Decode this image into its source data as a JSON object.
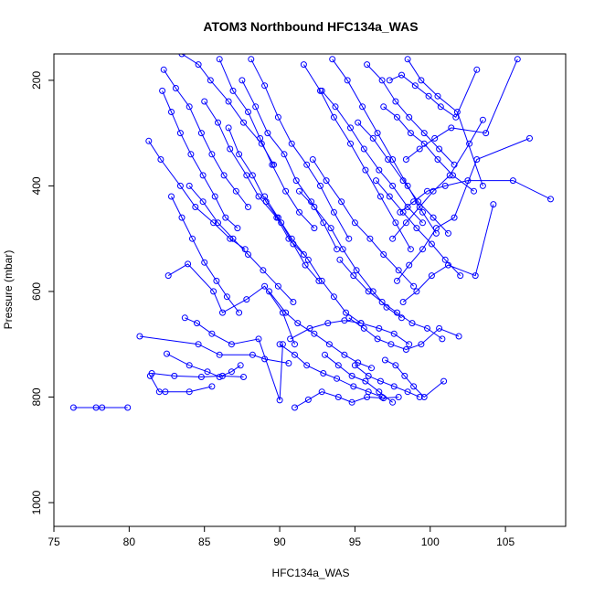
{
  "chart_data": {
    "type": "scatter",
    "title": "ATOM3 Northbound HFC134a_WAS",
    "xlabel": "HFC134a_WAS",
    "ylabel": "Pressure (mbar)",
    "xlim": [
      75,
      109
    ],
    "ylim": [
      1045,
      150
    ],
    "y_reversed": true,
    "grid": false,
    "legend": "none",
    "x_ticks": [
      "75",
      "80",
      "85",
      "90",
      "95",
      "100",
      "105"
    ],
    "y_ticks": [
      "200",
      "400",
      "600",
      "800",
      "1000"
    ],
    "colors": {
      "series": "#0000ff",
      "axis": "#000000"
    },
    "marker": "open-circle",
    "connect_points": true,
    "series": [
      {
        "x": [
          76.3,
          77.8,
          78.2,
          79.9
        ],
        "y": [
          820,
          820,
          820,
          820
        ]
      },
      {
        "x": [
          81.4,
          82.0,
          82.4,
          84.0,
          85.5
        ],
        "y": [
          760,
          790,
          790,
          790,
          780
        ]
      },
      {
        "x": [
          81.5,
          83.0,
          84.8,
          86.2,
          87.6
        ],
        "y": [
          755,
          760,
          762,
          760,
          762
        ]
      },
      {
        "x": [
          82.5,
          84.0,
          85.2,
          86.0,
          86.8,
          87.4
        ],
        "y": [
          718,
          740,
          752,
          762,
          752,
          740
        ]
      },
      {
        "x": [
          80.7,
          84.6,
          86.0,
          88.2,
          89.0,
          90.6
        ],
        "y": [
          685,
          700,
          720,
          720,
          728,
          736
        ]
      },
      {
        "x": [
          83.7,
          84.5,
          85.5,
          86.8,
          88.6,
          90.0,
          90.2
        ],
        "y": [
          650,
          660,
          680,
          700,
          690,
          806,
          700
        ]
      },
      {
        "x": [
          82.6,
          83.9,
          85.6,
          86.2,
          87.8,
          89.0,
          90.2,
          91.0
        ],
        "y": [
          570,
          548,
          600,
          640,
          615,
          590,
          640,
          700
        ]
      },
      {
        "x": [
          81.3,
          82.1,
          83.4,
          84.4,
          85.6,
          86.7,
          87.7
        ],
        "y": [
          315,
          350,
          400,
          440,
          470,
          500,
          520
        ]
      },
      {
        "x": [
          82.8,
          83.5,
          84.2,
          85.0,
          85.8,
          86.5,
          87.3
        ],
        "y": [
          420,
          460,
          500,
          545,
          580,
          610,
          640
        ]
      },
      {
        "x": [
          82.2,
          82.8,
          83.4,
          84.1,
          84.9,
          85.7,
          86.4,
          87.2
        ],
        "y": [
          220,
          260,
          300,
          340,
          380,
          420,
          460,
          480
        ]
      },
      {
        "x": [
          82.3,
          83.1,
          84.0,
          84.8,
          85.5,
          86.3,
          87.1,
          87.9
        ],
        "y": [
          180,
          215,
          250,
          300,
          340,
          380,
          410,
          440
        ]
      },
      {
        "x": [
          83.5,
          84.6,
          85.4,
          86.6,
          87.6,
          88.8,
          89.6
        ],
        "y": [
          150,
          170,
          200,
          240,
          280,
          320,
          360
        ]
      },
      {
        "x": [
          84.0,
          84.9,
          85.9,
          86.9,
          87.9,
          88.9,
          89.9,
          90.9
        ],
        "y": [
          400,
          430,
          470,
          500,
          530,
          560,
          590,
          620
        ]
      },
      {
        "x": [
          85.0,
          85.9,
          86.7,
          87.8,
          88.6,
          89.8,
          90.6,
          91.6
        ],
        "y": [
          240,
          280,
          330,
          380,
          420,
          460,
          500,
          530
        ]
      },
      {
        "x": [
          86.0,
          86.9,
          87.9,
          88.7,
          89.5,
          90.4,
          91.3,
          92.3
        ],
        "y": [
          160,
          220,
          260,
          310,
          360,
          410,
          450,
          480
        ]
      },
      {
        "x": [
          86.6,
          87.3,
          88.2,
          89.1,
          90.1,
          90.9,
          91.7,
          92.6
        ],
        "y": [
          290,
          340,
          380,
          430,
          470,
          510,
          550,
          580
        ]
      },
      {
        "x": [
          87.5,
          88.4,
          89.2,
          90.3,
          91.1,
          92.1,
          92.9,
          93.8
        ],
        "y": [
          200,
          250,
          300,
          340,
          390,
          430,
          470,
          520
        ]
      },
      {
        "x": [
          88.1,
          89.0,
          89.9,
          90.8,
          91.8,
          92.7,
          93.6,
          94.6
        ],
        "y": [
          160,
          210,
          270,
          320,
          360,
          400,
          450,
          500
        ]
      },
      {
        "x": [
          89.0,
          89.9,
          90.8,
          91.9,
          92.8,
          93.6,
          94.4,
          95.4
        ],
        "y": [
          420,
          460,
          500,
          540,
          580,
          610,
          640,
          660
        ]
      },
      {
        "x": [
          89.3,
          90.4,
          91.2,
          92.3,
          93.3,
          94.3,
          95.2,
          96.1
        ],
        "y": [
          600,
          640,
          660,
          680,
          700,
          720,
          735,
          745
        ]
      },
      {
        "x": [
          90.0,
          91.0,
          91.8,
          92.9,
          93.8,
          94.9,
          95.9,
          96.8
        ],
        "y": [
          700,
          720,
          740,
          755,
          765,
          780,
          790,
          800
        ]
      },
      {
        "x": [
          91.0,
          91.9,
          92.8,
          93.9,
          94.8,
          95.8,
          96.9,
          97.9
        ],
        "y": [
          820,
          805,
          790,
          800,
          810,
          800,
          802,
          800
        ]
      },
      {
        "x": [
          90.7,
          92.0,
          93.2,
          94.3,
          95.4,
          96.6,
          97.6,
          98.6
        ],
        "y": [
          690,
          670,
          660,
          655,
          660,
          670,
          680,
          700
        ]
      },
      {
        "x": [
          91.3,
          92.3,
          93.4,
          94.2,
          95.1,
          96.2,
          97.1,
          98.1
        ],
        "y": [
          410,
          440,
          480,
          520,
          560,
          600,
          630,
          650
        ]
      },
      {
        "x": [
          91.6,
          92.7,
          93.6,
          94.7,
          95.7,
          96.7,
          97.7,
          98.7
        ],
        "y": [
          170,
          220,
          270,
          320,
          370,
          420,
          470,
          520
        ]
      },
      {
        "x": [
          92.2,
          93.1,
          94.1,
          95.0,
          96.0,
          96.9,
          97.9,
          98.9
        ],
        "y": [
          350,
          390,
          430,
          470,
          500,
          530,
          560,
          590
        ]
      },
      {
        "x": [
          92.8,
          93.7,
          94.7,
          95.6,
          96.6,
          97.5,
          98.5,
          99.5
        ],
        "y": [
          220,
          250,
          290,
          330,
          370,
          400,
          440,
          470
        ]
      },
      {
        "x": [
          93.5,
          94.5,
          95.5,
          96.5,
          97.5,
          98.5,
          99.5,
          100.4
        ],
        "y": [
          160,
          200,
          250,
          300,
          350,
          400,
          450,
          490
        ]
      },
      {
        "x": [
          94.0,
          94.9,
          95.9,
          96.8,
          97.8,
          98.8,
          99.8,
          100.8
        ],
        "y": [
          540,
          570,
          600,
          620,
          640,
          660,
          670,
          690
        ]
      },
      {
        "x": [
          94.6,
          95.6,
          96.5,
          97.4,
          98.4,
          99.4,
          100.6,
          101.9
        ],
        "y": [
          650,
          670,
          690,
          700,
          710,
          700,
          670,
          685
        ]
      },
      {
        "x": [
          95.2,
          96.2,
          97.2,
          98.2,
          99.2,
          100.2,
          101.2
        ],
        "y": [
          280,
          310,
          350,
          390,
          430,
          460,
          490
        ]
      },
      {
        "x": [
          95.8,
          96.8,
          97.7,
          98.6,
          99.6,
          100.6,
          101.6
        ],
        "y": [
          170,
          200,
          240,
          270,
          300,
          330,
          360
        ]
      },
      {
        "x": [
          96.4,
          97.3,
          98.2,
          99.1,
          100.1,
          101.0,
          102.0
        ],
        "y": [
          390,
          420,
          450,
          480,
          510,
          540,
          570
        ]
      },
      {
        "x": [
          96.9,
          97.8,
          98.7,
          99.6,
          100.5,
          101.5,
          102.9
        ],
        "y": [
          250,
          270,
          300,
          320,
          350,
          380,
          410
        ]
      },
      {
        "x": [
          97.3,
          98.1,
          99.0,
          99.9,
          100.7,
          101.7,
          103.1
        ],
        "y": [
          200,
          190,
          210,
          230,
          250,
          270,
          180
        ]
      },
      {
        "x": [
          97.5,
          98.4,
          99.3,
          100.2,
          101.3,
          102.6,
          103.5
        ],
        "y": [
          500,
          470,
          440,
          410,
          380,
          320,
          275
        ]
      },
      {
        "x": [
          97.8,
          98.6,
          99.5,
          100.4,
          101.6,
          103.1,
          106.6
        ],
        "y": [
          580,
          550,
          520,
          480,
          460,
          350,
          310
        ]
      },
      {
        "x": [
          98.0,
          98.9,
          99.8,
          101.0,
          102.5,
          105.5,
          108.0
        ],
        "y": [
          450,
          430,
          410,
          400,
          390,
          390,
          425
        ]
      },
      {
        "x": [
          98.2,
          99.1,
          100.1,
          101.2,
          103.0,
          104.2
        ],
        "y": [
          620,
          600,
          570,
          550,
          570,
          435
        ]
      },
      {
        "x": [
          98.4,
          99.3,
          100.3,
          101.4,
          103.7,
          105.8
        ],
        "y": [
          350,
          330,
          310,
          290,
          300,
          160
        ]
      },
      {
        "x": [
          98.5,
          99.4,
          100.5,
          101.8,
          103.5
        ],
        "y": [
          160,
          200,
          230,
          260,
          400
        ]
      },
      {
        "x": [
          97.0,
          97.7,
          98.3,
          98.9,
          99.6,
          100.9
        ],
        "y": [
          730,
          740,
          760,
          780,
          800,
          770
        ]
      },
      {
        "x": [
          95.0,
          95.9,
          96.7,
          97.6,
          98.5,
          99.3
        ],
        "y": [
          740,
          760,
          770,
          780,
          790,
          800
        ]
      },
      {
        "x": [
          93.0,
          93.9,
          94.8,
          95.7,
          96.6,
          97.5
        ],
        "y": [
          720,
          740,
          760,
          770,
          790,
          810
        ]
      }
    ]
  }
}
